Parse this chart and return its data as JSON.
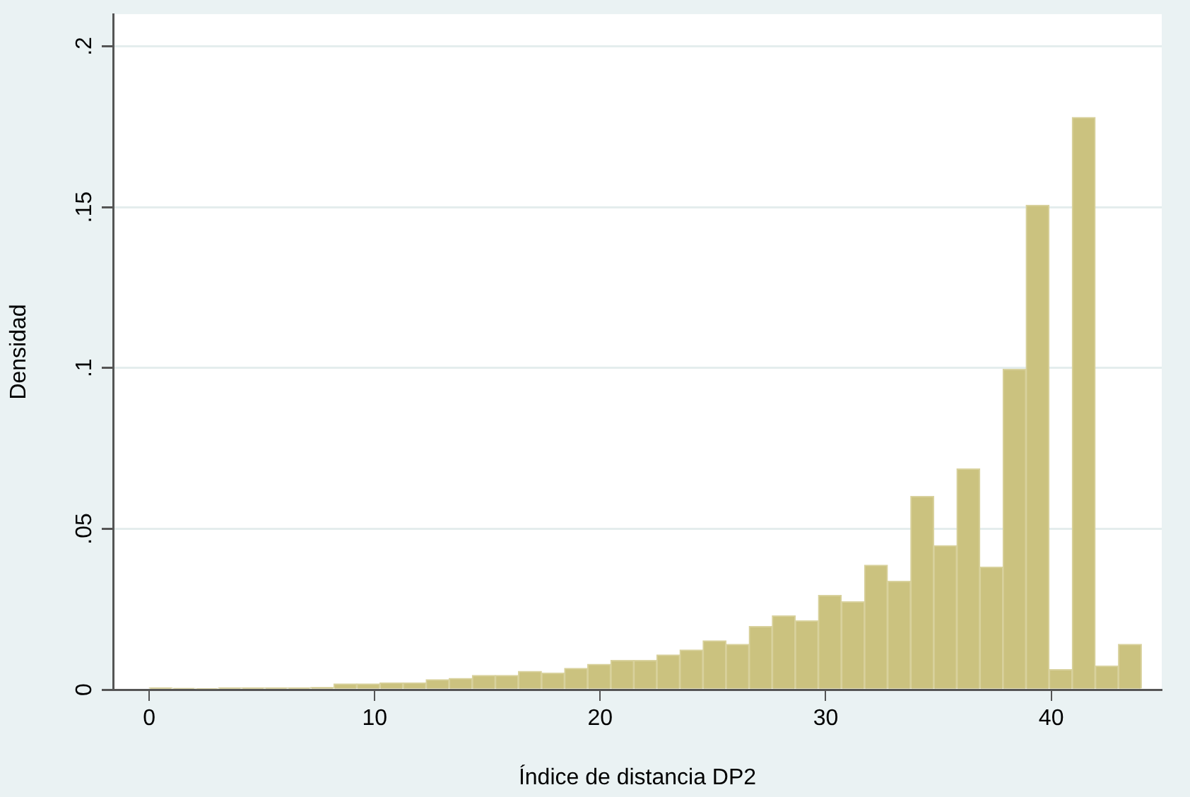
{
  "chart_data": {
    "type": "histogram",
    "xlabel": "Índice de distancia DP2",
    "ylabel": "Densidad",
    "bins": [
      0,
      1.02,
      2.05,
      3.07,
      4.09,
      5.12,
      6.14,
      7.16,
      8.19,
      9.21,
      10.23,
      11.26,
      12.28,
      13.3,
      14.33,
      15.35,
      16.37,
      17.4,
      18.42,
      19.44,
      20.47,
      21.49,
      22.51,
      23.53,
      24.56,
      25.58,
      26.6,
      27.63,
      28.65,
      29.67,
      30.7,
      31.72,
      32.74,
      33.77,
      34.79,
      35.81,
      36.84,
      37.86,
      38.88,
      39.91,
      40.93,
      41.95,
      42.98,
      44
    ],
    "values": [
      0.0005,
      0.0004,
      0.0003,
      0.0005,
      0.0005,
      0.0005,
      0.0005,
      0.0007,
      0.0018,
      0.0018,
      0.0021,
      0.0021,
      0.0031,
      0.0035,
      0.0044,
      0.0044,
      0.0057,
      0.0051,
      0.0066,
      0.0079,
      0.0091,
      0.0091,
      0.0108,
      0.0123,
      0.0152,
      0.0141,
      0.0196,
      0.0229,
      0.0214,
      0.0293,
      0.0273,
      0.0387,
      0.0337,
      0.0601,
      0.0448,
      0.0686,
      0.0381,
      0.0996,
      0.1506,
      0.0062,
      0.1779,
      0.0073,
      0.0141
    ],
    "color": "#cbc27f",
    "xlim": [
      -1.6,
      44.9
    ],
    "xticks": [
      0,
      10,
      20,
      30,
      40
    ],
    "ylim": [
      0,
      0.21
    ],
    "yticks": [
      0,
      {
        "value": 0.05,
        "label": ".05"
      },
      {
        "value": 0.1,
        "label": ".1"
      },
      {
        "value": 0.15,
        "label": ".15"
      },
      {
        "value": 0.2,
        "label": ".2"
      }
    ],
    "grid": "y"
  }
}
